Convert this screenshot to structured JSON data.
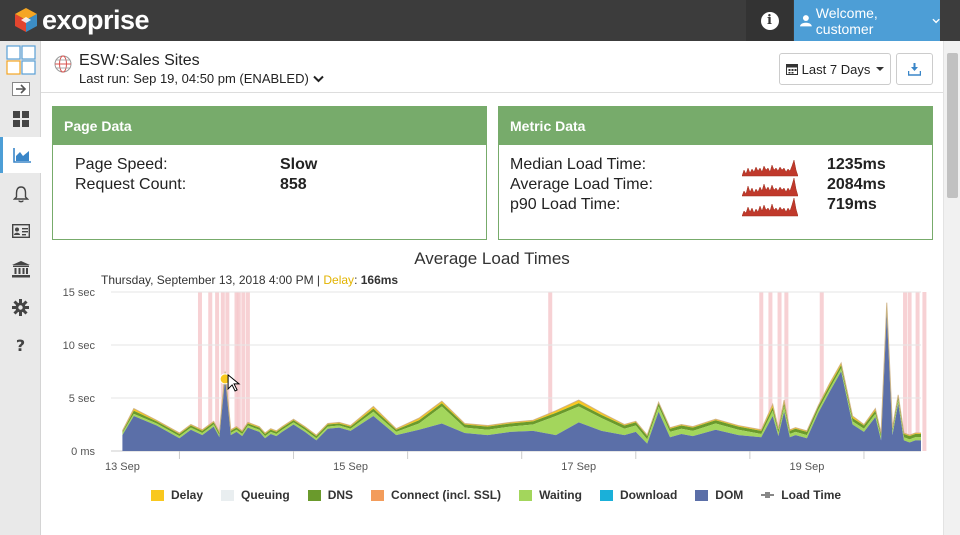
{
  "app": {
    "logo_text": "exoprise",
    "welcome": "Welcome, customer"
  },
  "header": {
    "title": "ESW:Sales Sites",
    "last_run": "Last run: Sep 19, 04:50 pm (ENABLED)",
    "date_range": "Last 7 Days"
  },
  "page_data": {
    "title": "Page Data",
    "rows": [
      {
        "label": "Page Speed:",
        "value": "Slow"
      },
      {
        "label": "Request Count:",
        "value": "858"
      }
    ]
  },
  "metric_data": {
    "title": "Metric Data",
    "rows": [
      {
        "label": "Median Load Time:",
        "value": "1235ms"
      },
      {
        "label": "Average Load Time:",
        "value": "2084ms"
      },
      {
        "label": "p90 Load Time:",
        "value": "719ms"
      }
    ]
  },
  "tooltip": {
    "date": "Thursday, September 13, 2018 4:00 PM",
    "sep": " | ",
    "delay_label": "Delay",
    "delay_value": "166ms"
  },
  "chart_data": {
    "type": "area",
    "title": "Average Load Times",
    "y_unit": "sec",
    "ylim": [
      0,
      15
    ],
    "y_ticks": [
      {
        "v": 0,
        "label": "0 ms"
      },
      {
        "v": 5,
        "label": "5 sec"
      },
      {
        "v": 10,
        "label": "10 sec"
      },
      {
        "v": 15,
        "label": "15 sec"
      }
    ],
    "x_ticks": [
      {
        "x": 0,
        "label": "13 Sep"
      },
      {
        "x": 2,
        "label": "15 Sep"
      },
      {
        "x": 4,
        "label": "17 Sep"
      },
      {
        "x": 6,
        "label": "19 Sep"
      }
    ],
    "xlim": [
      -0.1,
      7.0
    ],
    "grid": true,
    "legend_position": "bottom",
    "series": [
      {
        "name": "Delay",
        "color": "#f9c81e"
      },
      {
        "name": "Queuing",
        "color": "#e9eef0"
      },
      {
        "name": "DNS",
        "color": "#6a9a2c"
      },
      {
        "name": "Connect (incl. SSL)",
        "color": "#f39c5b"
      },
      {
        "name": "Waiting",
        "color": "#a3d65c"
      },
      {
        "name": "Download",
        "color": "#1ab0d9"
      },
      {
        "name": "DOM",
        "color": "#5b6fa8"
      },
      {
        "name": "Load Time",
        "color": "#888888"
      }
    ],
    "x": [
      0.0,
      0.1,
      0.3,
      0.5,
      0.6,
      0.7,
      0.8,
      0.85,
      0.9,
      0.95,
      1.0,
      1.05,
      1.1,
      1.2,
      1.25,
      1.3,
      1.35,
      1.4,
      1.5,
      1.6,
      1.7,
      1.8,
      1.9,
      2.0,
      2.2,
      2.4,
      2.6,
      2.8,
      3.0,
      3.2,
      3.4,
      3.6,
      3.8,
      4.0,
      4.2,
      4.4,
      4.5,
      4.6,
      4.7,
      4.8,
      4.9,
      5.0,
      5.2,
      5.4,
      5.6,
      5.7,
      5.75,
      5.8,
      5.85,
      5.9,
      6.0,
      6.1,
      6.2,
      6.3,
      6.4,
      6.5,
      6.6,
      6.65,
      6.7,
      6.75,
      6.8,
      6.85,
      6.9,
      6.95,
      7.0
    ],
    "dom_values": [
      1.5,
      3.3,
      2.4,
      1.2,
      2.0,
      1.5,
      2.3,
      1.3,
      6.8,
      1.5,
      1.8,
      1.4,
      2.2,
      1.8,
      1.2,
      1.6,
      1.4,
      1.8,
      2.5,
      1.8,
      1.0,
      2.1,
      2.2,
      1.9,
      3.3,
      1.5,
      2.0,
      2.6,
      1.7,
      1.5,
      1.8,
      1.9,
      1.5,
      2.7,
      1.9,
      1.5,
      1.8,
      0.7,
      3.7,
      1.3,
      1.6,
      1.4,
      2.0,
      1.5,
      1.3,
      3.3,
      1.4,
      3.7,
      1.3,
      1.5,
      1.2,
      3.6,
      5.6,
      7.5,
      2.5,
      1.8,
      3.2,
      1.0,
      13.0,
      1.5,
      4.5,
      1.0,
      0.8,
      1.0,
      1.0
    ],
    "waiting_extra": [
      0.2,
      0.2,
      0.2,
      0.2,
      0.2,
      0.2,
      0.2,
      0.2,
      0.3,
      0.2,
      0.2,
      0.2,
      0.2,
      0.2,
      0.2,
      0.2,
      0.2,
      0.2,
      0.2,
      0.2,
      0.2,
      0.2,
      0.2,
      0.2,
      0.4,
      0.3,
      0.6,
      1.6,
      0.5,
      0.5,
      0.5,
      0.6,
      1.8,
      1.5,
      1.2,
      0.6,
      0.6,
      0.4,
      0.5,
      0.5,
      0.5,
      0.5,
      0.6,
      0.5,
      0.3,
      0.5,
      0.3,
      0.5,
      0.3,
      0.3,
      0.3,
      0.3,
      0.3,
      0.3,
      0.3,
      0.3,
      0.3,
      0.3,
      0.4,
      0.3,
      0.3,
      0.3,
      0.3,
      0.3,
      0.3
    ],
    "dns_extra": [
      0.1,
      0.3,
      0.2,
      0.2,
      0.2,
      0.2,
      0.2,
      0.2,
      0.3,
      0.2,
      0.2,
      0.2,
      0.2,
      0.2,
      0.2,
      0.2,
      0.2,
      0.2,
      0.2,
      0.2,
      0.2,
      0.2,
      0.2,
      0.2,
      0.3,
      0.2,
      0.3,
      0.3,
      0.3,
      0.3,
      0.3,
      0.3,
      0.3,
      0.3,
      0.3,
      0.3,
      0.3,
      0.3,
      0.3,
      0.3,
      0.3,
      0.3,
      0.3,
      0.3,
      0.3,
      0.3,
      0.3,
      0.3,
      0.3,
      0.3,
      0.3,
      0.3,
      0.3,
      0.3,
      0.3,
      0.3,
      0.3,
      0.3,
      0.4,
      0.3,
      0.3,
      0.3,
      0.3,
      0.3,
      0.3
    ],
    "delay_extra": [
      0.1,
      0.2,
      0.1,
      0.1,
      0.1,
      0.1,
      0.1,
      0.1,
      0.1,
      0.1,
      0.1,
      0.1,
      0.1,
      0.1,
      0.1,
      0.1,
      0.1,
      0.1,
      0.1,
      0.1,
      0.1,
      0.1,
      0.1,
      0.1,
      0.2,
      0.1,
      0.2,
      0.2,
      0.1,
      0.1,
      0.1,
      0.1,
      0.2,
      0.3,
      0.2,
      0.1,
      0.1,
      0.1,
      0.1,
      0.1,
      0.1,
      0.1,
      0.1,
      0.1,
      0.1,
      0.3,
      0.1,
      0.3,
      0.1,
      0.1,
      0.1,
      0.1,
      0.2,
      0.2,
      0.2,
      0.1,
      0.2,
      0.1,
      0.2,
      0.1,
      0.2,
      0.1,
      0.1,
      0.1,
      0.1
    ],
    "highlight_bands": [
      0.68,
      0.77,
      0.83,
      0.88,
      0.92,
      1.0,
      1.02,
      1.06,
      1.1,
      3.75,
      5.6,
      5.68,
      5.76,
      5.82,
      6.13,
      6.86,
      6.9,
      6.97,
      7.03
    ],
    "tooltip_point": {
      "x": 0.9,
      "y": 6.8
    }
  }
}
